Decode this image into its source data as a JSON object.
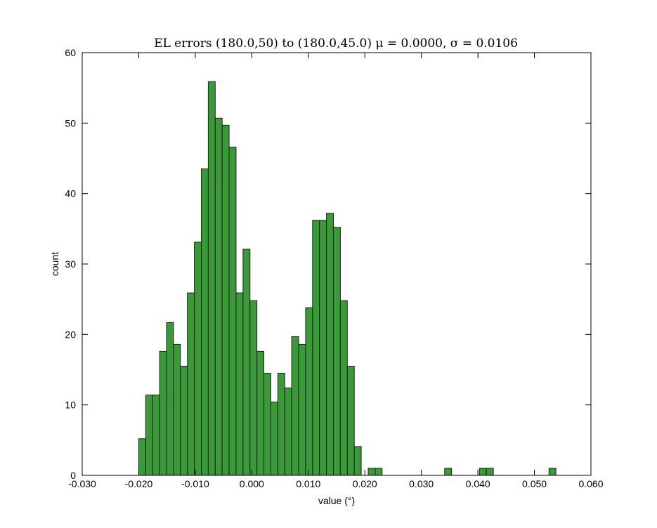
{
  "chart_data": {
    "type": "bar",
    "title": "EL errors (180.0,50) to (180.0,45.0) μ = 0.0000, σ = 0.0106",
    "xlabel": "value (°)",
    "ylabel": "count",
    "xlim": [
      -0.03,
      0.06
    ],
    "ylim": [
      0,
      60
    ],
    "x_ticks": [
      -0.03,
      -0.02,
      -0.01,
      0.0,
      0.01,
      0.02,
      0.03,
      0.04,
      0.05,
      0.06
    ],
    "x_tick_labels": [
      "-0.030",
      "-0.020",
      "-0.010",
      "0.000",
      "0.010",
      "0.020",
      "0.030",
      "0.040",
      "0.050",
      "0.060"
    ],
    "y_ticks": [
      0,
      10,
      20,
      30,
      40,
      50,
      60
    ],
    "y_tick_labels": [
      "0",
      "10",
      "20",
      "30",
      "40",
      "50",
      "60"
    ],
    "bin_width": 0.00123,
    "bins": [
      {
        "x0": -0.02,
        "count": 5.2
      },
      {
        "x0": -0.01877,
        "count": 11.4
      },
      {
        "x0": -0.01754,
        "count": 11.4
      },
      {
        "x0": -0.01631,
        "count": 17.6
      },
      {
        "x0": -0.01508,
        "count": 21.7
      },
      {
        "x0": -0.01385,
        "count": 18.6
      },
      {
        "x0": -0.01262,
        "count": 15.5
      },
      {
        "x0": -0.01139,
        "count": 25.9
      },
      {
        "x0": -0.01016,
        "count": 33.1
      },
      {
        "x0": -0.00893,
        "count": 43.5
      },
      {
        "x0": -0.0077,
        "count": 55.9
      },
      {
        "x0": -0.00647,
        "count": 50.7
      },
      {
        "x0": -0.00524,
        "count": 49.7
      },
      {
        "x0": -0.00401,
        "count": 46.6
      },
      {
        "x0": -0.00278,
        "count": 25.9
      },
      {
        "x0": -0.00155,
        "count": 32.1
      },
      {
        "x0": -0.00032,
        "count": 24.8
      },
      {
        "x0": 0.00091,
        "count": 17.6
      },
      {
        "x0": 0.00214,
        "count": 14.5
      },
      {
        "x0": 0.00337,
        "count": 10.4
      },
      {
        "x0": 0.0046,
        "count": 14.5
      },
      {
        "x0": 0.00583,
        "count": 12.4
      },
      {
        "x0": 0.00706,
        "count": 19.7
      },
      {
        "x0": 0.00829,
        "count": 18.6
      },
      {
        "x0": 0.00952,
        "count": 23.8
      },
      {
        "x0": 0.01075,
        "count": 36.2
      },
      {
        "x0": 0.01198,
        "count": 36.2
      },
      {
        "x0": 0.01321,
        "count": 37.2
      },
      {
        "x0": 0.01444,
        "count": 35.2
      },
      {
        "x0": 0.01567,
        "count": 24.8
      },
      {
        "x0": 0.0169,
        "count": 15.5
      },
      {
        "x0": 0.01813,
        "count": 4.1
      },
      {
        "x0": 0.02059,
        "count": 1.0
      },
      {
        "x0": 0.02182,
        "count": 1.0
      },
      {
        "x0": 0.03412,
        "count": 1.0
      },
      {
        "x0": 0.04027,
        "count": 1.0
      },
      {
        "x0": 0.0415,
        "count": 1.0
      },
      {
        "x0": 0.05257,
        "count": 1.0
      }
    ],
    "bar_color": "#3a9a3a",
    "bar_edge_color": "#1f1f1f",
    "grid": false,
    "legend": "none"
  }
}
